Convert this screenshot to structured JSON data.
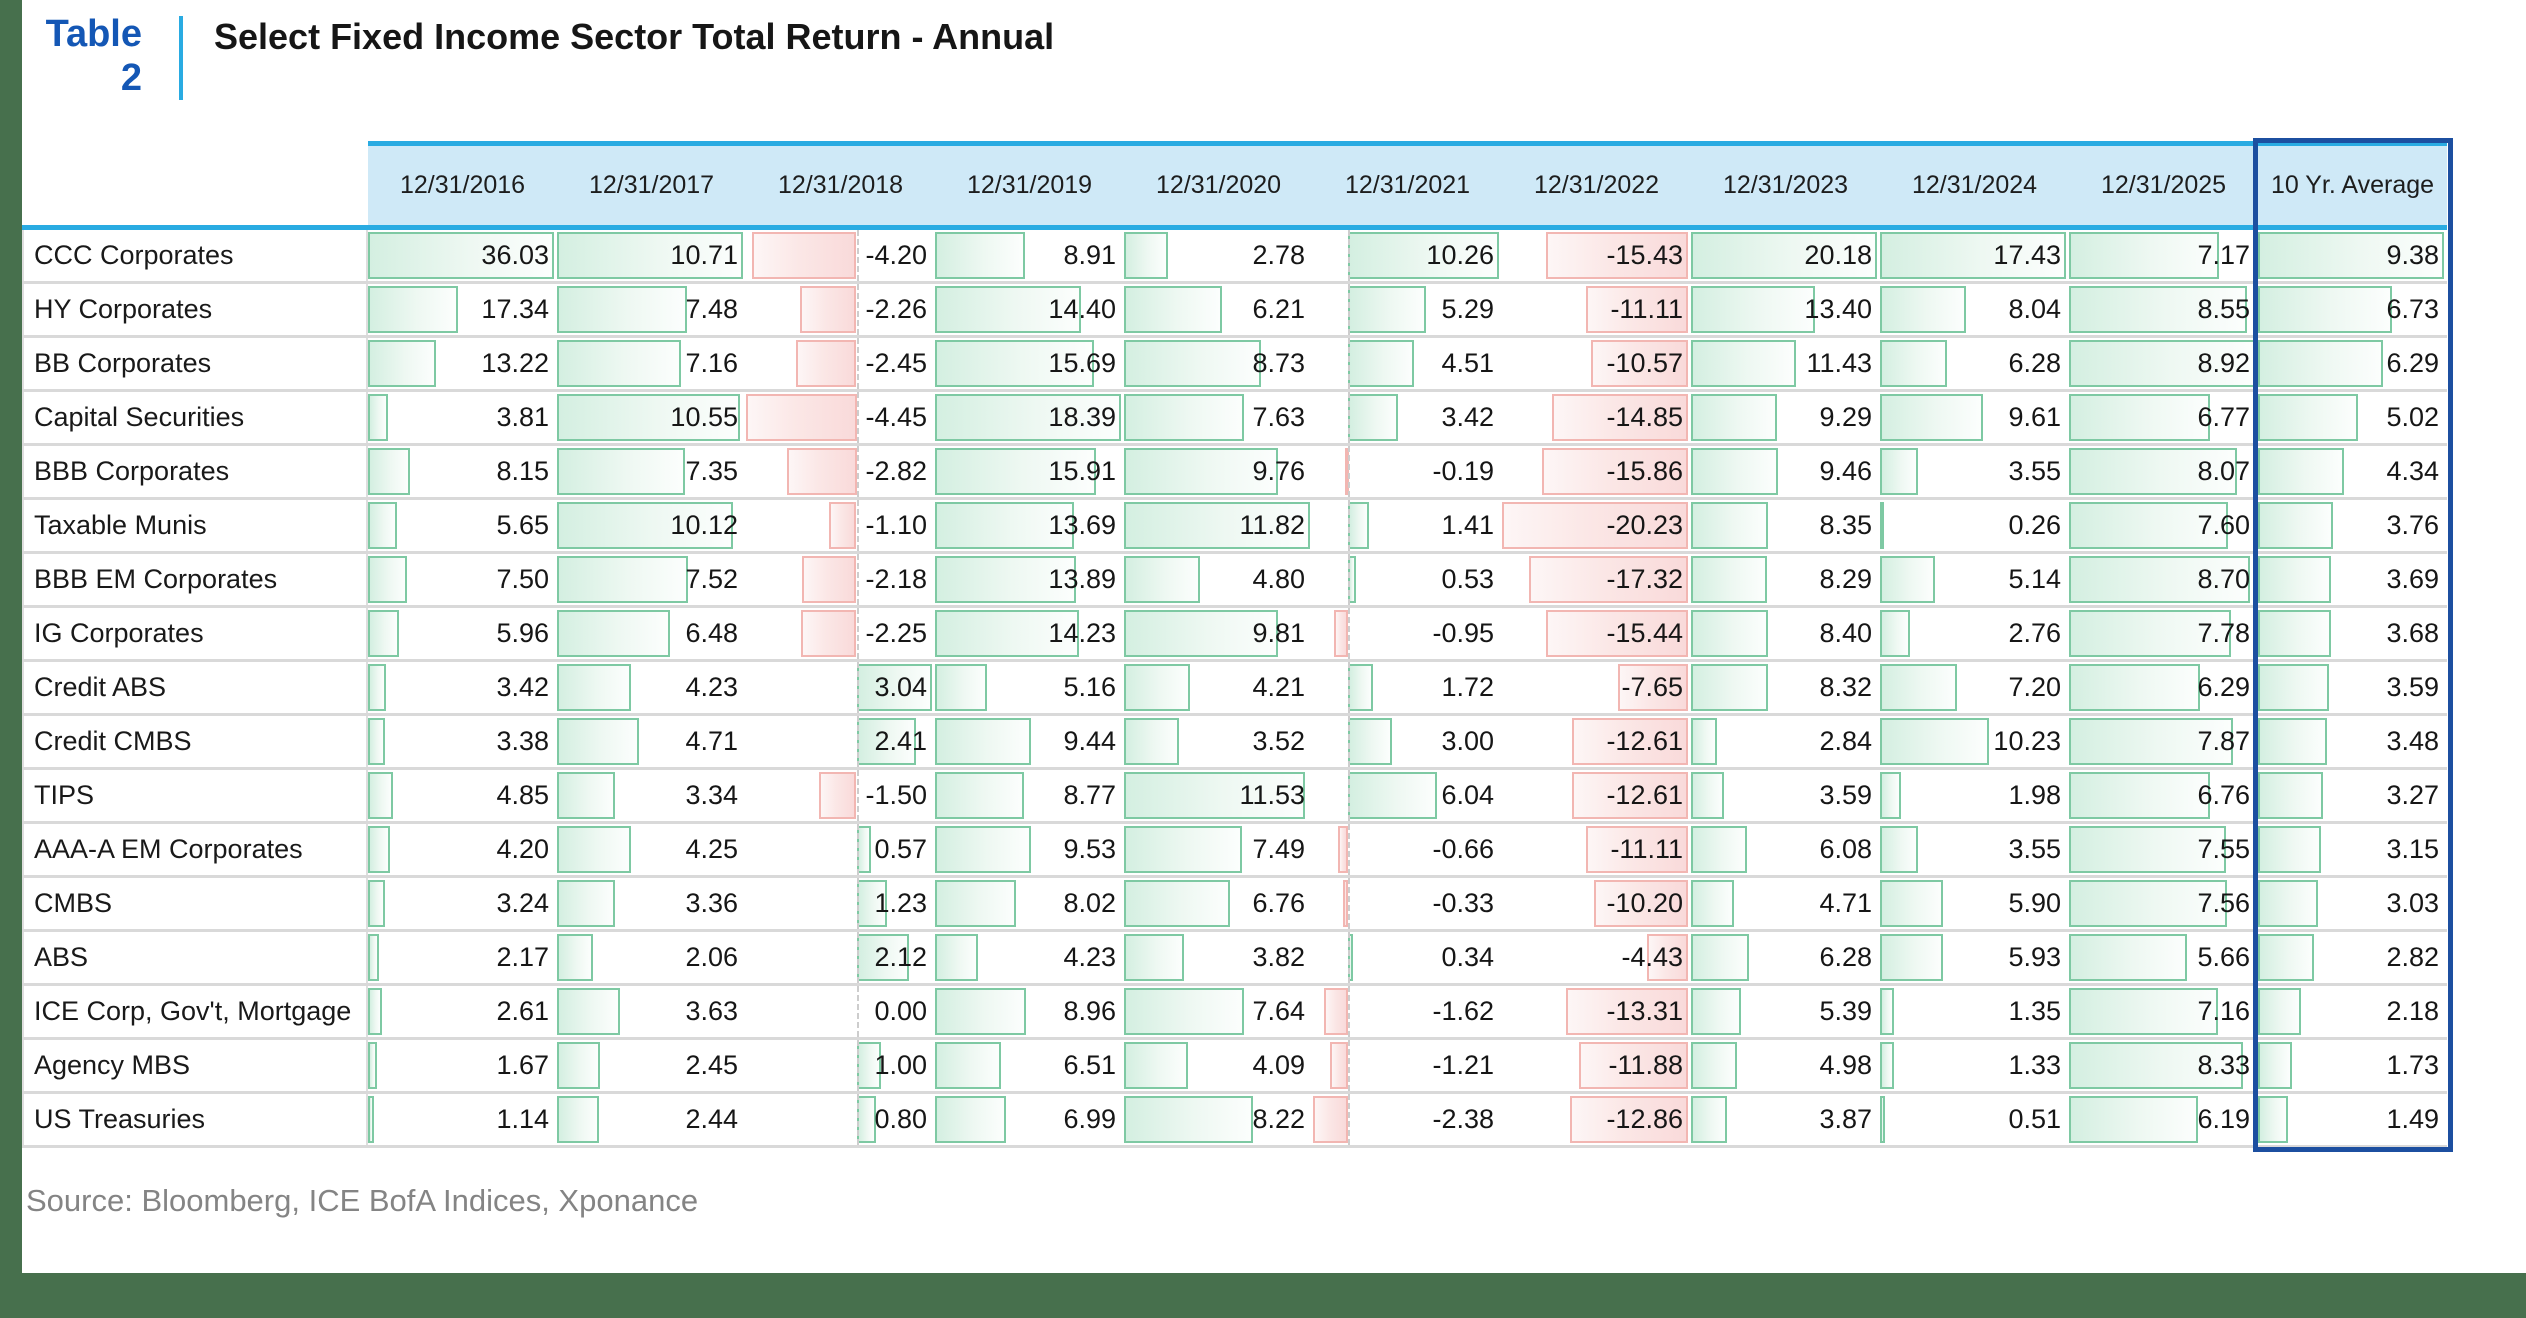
{
  "page": {
    "table_tag_label": "Table",
    "table_tag_number": "2",
    "title": "Select Fixed Income Sector Total Return - Annual",
    "source": "Source: Bloomberg, ICE BofA Indices, Xponance"
  },
  "colors": {
    "accent_blue": "#29abe2",
    "header_bg": "#cfe9f7",
    "tag_blue": "#1457b5",
    "highlight_border_navy": "#1c4fa0",
    "positive_bar_border": "#7ec9a3",
    "positive_bar_fill": "#d4efe1",
    "negative_bar_border": "#f2b6b2",
    "negative_bar_fill": "#f9dada",
    "side_strip_green": "#47704d",
    "row_separator": "#d9d9d9",
    "source_gray": "#848484"
  },
  "chart_data": {
    "type": "table",
    "title": "Select Fixed Income Sector Total Return - Annual",
    "columns": [
      "12/31/2016",
      "12/31/2017",
      "12/31/2018",
      "12/31/2019",
      "12/31/2020",
      "12/31/2021",
      "12/31/2022",
      "12/31/2023",
      "12/31/2024",
      "12/31/2025",
      "10 Yr. Average"
    ],
    "highlight_column": "10 Yr. Average",
    "value_format": "two_decimals",
    "bar_style": "excel-style data bars per column: positive bars green extending right of axis, negative bars pink extending left of axis; axis auto-positioned from column min/max; dashed axis line shown in columns containing both signs",
    "rows": [
      {
        "label": "CCC Corporates",
        "values": [
          36.03,
          10.71,
          -4.2,
          8.91,
          2.78,
          10.26,
          -15.43,
          20.18,
          17.43,
          7.17,
          9.38
        ]
      },
      {
        "label": "HY Corporates",
        "values": [
          17.34,
          7.48,
          -2.26,
          14.4,
          6.21,
          5.29,
          -11.11,
          13.4,
          8.04,
          8.55,
          6.73
        ]
      },
      {
        "label": "BB Corporates",
        "values": [
          13.22,
          7.16,
          -2.45,
          15.69,
          8.73,
          4.51,
          -10.57,
          11.43,
          6.28,
          8.92,
          6.29
        ]
      },
      {
        "label": "Capital Securities",
        "values": [
          3.81,
          10.55,
          -4.45,
          18.39,
          7.63,
          3.42,
          -14.85,
          9.29,
          9.61,
          6.77,
          5.02
        ]
      },
      {
        "label": "BBB Corporates",
        "values": [
          8.15,
          7.35,
          -2.82,
          15.91,
          9.76,
          -0.19,
          -15.86,
          9.46,
          3.55,
          8.07,
          4.34
        ]
      },
      {
        "label": "Taxable Munis",
        "values": [
          5.65,
          10.12,
          -1.1,
          13.69,
          11.82,
          1.41,
          -20.23,
          8.35,
          0.26,
          7.6,
          3.76
        ]
      },
      {
        "label": "BBB EM Corporates",
        "values": [
          7.5,
          7.52,
          -2.18,
          13.89,
          4.8,
          0.53,
          -17.32,
          8.29,
          5.14,
          8.7,
          3.69
        ]
      },
      {
        "label": "IG Corporates",
        "values": [
          5.96,
          6.48,
          -2.25,
          14.23,
          9.81,
          -0.95,
          -15.44,
          8.4,
          2.76,
          7.78,
          3.68
        ]
      },
      {
        "label": "Credit ABS",
        "values": [
          3.42,
          4.23,
          3.04,
          5.16,
          4.21,
          1.72,
          -7.65,
          8.32,
          7.2,
          6.29,
          3.59
        ]
      },
      {
        "label": "Credit CMBS",
        "values": [
          3.38,
          4.71,
          2.41,
          9.44,
          3.52,
          3.0,
          -12.61,
          2.84,
          10.23,
          7.87,
          3.48
        ]
      },
      {
        "label": "TIPS",
        "values": [
          4.85,
          3.34,
          -1.5,
          8.77,
          11.53,
          6.04,
          -12.61,
          3.59,
          1.98,
          6.76,
          3.27
        ]
      },
      {
        "label": "AAA-A EM Corporates",
        "values": [
          4.2,
          4.25,
          0.57,
          9.53,
          7.49,
          -0.66,
          -11.11,
          6.08,
          3.55,
          7.55,
          3.15
        ]
      },
      {
        "label": "CMBS",
        "values": [
          3.24,
          3.36,
          1.23,
          8.02,
          6.76,
          -0.33,
          -10.2,
          4.71,
          5.9,
          7.56,
          3.03
        ]
      },
      {
        "label": "ABS",
        "values": [
          2.17,
          2.06,
          2.12,
          4.23,
          3.82,
          0.34,
          -4.43,
          6.28,
          5.93,
          5.66,
          2.82
        ]
      },
      {
        "label": "ICE Corp, Gov't, Mortgage",
        "values": [
          2.61,
          3.63,
          0.0,
          8.96,
          7.64,
          -1.62,
          -13.31,
          5.39,
          1.35,
          7.16,
          2.18
        ]
      },
      {
        "label": "Agency MBS",
        "values": [
          1.67,
          2.45,
          1.0,
          6.51,
          4.09,
          -1.21,
          -11.88,
          4.98,
          1.33,
          8.33,
          1.73
        ]
      },
      {
        "label": "US Treasuries",
        "values": [
          1.14,
          2.44,
          0.8,
          6.99,
          8.22,
          -2.38,
          -12.86,
          3.87,
          0.51,
          6.19,
          1.49
        ]
      }
    ]
  }
}
